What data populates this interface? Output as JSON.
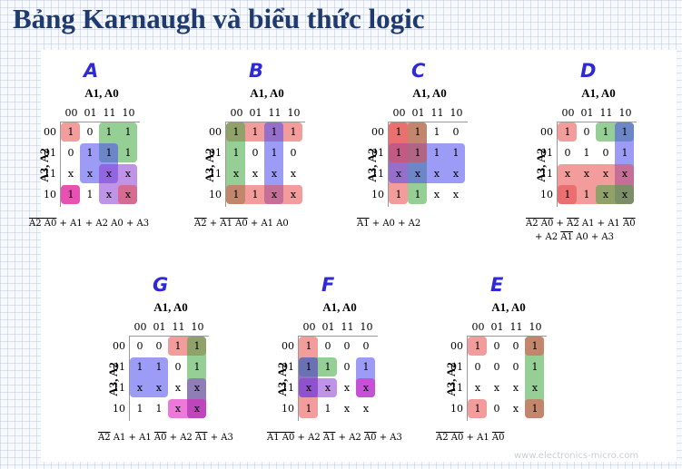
{
  "title": "Bảng Karnaugh và biểu thức logic",
  "col_var_label": "A1, A0",
  "row_var_label": "A3, A2",
  "gray_code": [
    "00",
    "01",
    "11",
    "10"
  ],
  "watermark": "www.electronics-micro.com",
  "colors": {
    "title": "#1f3a6e",
    "letter": "#2e2ad8",
    "red": "#e84a4a",
    "green": "#3fa83f",
    "blue": "#4a4af0",
    "purple": "#8a3bd0",
    "magenta": "#e020c0"
  },
  "maps": [
    {
      "letter": "A",
      "cells": [
        [
          "1",
          "0",
          "1",
          "1"
        ],
        [
          "0",
          "1",
          "1",
          "1"
        ],
        [
          "x",
          "x",
          "x",
          "x"
        ],
        [
          "1",
          "1",
          "x",
          "x"
        ]
      ],
      "expr": [
        [
          [
            "A2 A0",
            "ol"
          ],
          [
            " + A1 + A2 A0 + A3",
            ""
          ]
        ]
      ]
    },
    {
      "letter": "B",
      "cells": [
        [
          "1",
          "1",
          "1",
          "1"
        ],
        [
          "1",
          "0",
          "1",
          "0"
        ],
        [
          "x",
          "x",
          "x",
          "x"
        ],
        [
          "1",
          "1",
          "x",
          "x"
        ]
      ],
      "expr": [
        [
          [
            "A2",
            "ol"
          ],
          [
            " + ",
            ""
          ],
          [
            "A1 A0",
            "ol"
          ],
          [
            " + A1 A0",
            ""
          ]
        ]
      ]
    },
    {
      "letter": "C",
      "cells": [
        [
          "1",
          "1",
          "1",
          "0"
        ],
        [
          "1",
          "1",
          "1",
          "1"
        ],
        [
          "x",
          "x",
          "x",
          "x"
        ],
        [
          "1",
          "1",
          "x",
          "x"
        ]
      ],
      "expr": [
        [
          [
            "A1",
            "ol"
          ],
          [
            " + A0 + A2",
            ""
          ]
        ]
      ]
    },
    {
      "letter": "D",
      "cells": [
        [
          "1",
          "0",
          "1",
          "1"
        ],
        [
          "0",
          "1",
          "0",
          "1"
        ],
        [
          "x",
          "x",
          "x",
          "x"
        ],
        [
          "1",
          "1",
          "x",
          "x"
        ]
      ],
      "expr": [
        [
          [
            "A2 A0",
            "ol"
          ],
          [
            " + ",
            ""
          ],
          [
            "A2",
            "ol"
          ],
          [
            " A1 + A1 ",
            ""
          ],
          [
            "A0",
            "ol"
          ]
        ],
        [
          [
            "+ A2 ",
            ""
          ],
          [
            "A1",
            "ol"
          ],
          [
            " A0 + A3",
            ""
          ]
        ]
      ]
    },
    {
      "letter": "G",
      "cells": [
        [
          "0",
          "0",
          "1",
          "1"
        ],
        [
          "1",
          "1",
          "0",
          "1"
        ],
        [
          "x",
          "x",
          "x",
          "x"
        ],
        [
          "1",
          "1",
          "x",
          "x"
        ]
      ],
      "expr": [
        [
          [
            "A2",
            "ol"
          ],
          [
            " A1 + A1 ",
            ""
          ],
          [
            "A0",
            "ol"
          ],
          [
            " + A2 ",
            ""
          ],
          [
            "A1",
            "ol"
          ],
          [
            " + A3",
            ""
          ]
        ]
      ]
    },
    {
      "letter": "F",
      "cells": [
        [
          "1",
          "0",
          "0",
          "0"
        ],
        [
          "1",
          "1",
          "0",
          "1"
        ],
        [
          "x",
          "x",
          "x",
          "x"
        ],
        [
          "1",
          "1",
          "x",
          "x"
        ]
      ],
      "expr": [
        [
          [
            "A1 A0",
            "ol"
          ],
          [
            " + A2 ",
            ""
          ],
          [
            "A1",
            "ol"
          ],
          [
            " + A2 ",
            ""
          ],
          [
            "A0",
            "ol"
          ],
          [
            " + A3",
            ""
          ]
        ]
      ]
    },
    {
      "letter": "E",
      "cells": [
        [
          "1",
          "0",
          "0",
          "1"
        ],
        [
          "0",
          "0",
          "0",
          "1"
        ],
        [
          "x",
          "x",
          "x",
          "x"
        ],
        [
          "1",
          "0",
          "x",
          "1"
        ]
      ],
      "expr": [
        [
          [
            "A2 A0",
            "ol"
          ],
          [
            " + A1 ",
            ""
          ],
          [
            "A0",
            "ol"
          ]
        ]
      ]
    }
  ],
  "groups": [
    [
      {
        "c": "red",
        "r": [
          0,
          0
        ],
        "k": [
          0,
          0
        ]
      },
      {
        "c": "red",
        "r": [
          3,
          3
        ],
        "k": [
          0,
          0
        ]
      },
      {
        "c": "green",
        "r": [
          0,
          1
        ],
        "k": [
          2,
          3
        ]
      },
      {
        "c": "blue",
        "r": [
          1,
          2
        ],
        "k": [
          1,
          2
        ]
      },
      {
        "c": "purple",
        "r": [
          2,
          3
        ],
        "k": [
          2,
          3
        ]
      },
      {
        "c": "magenta",
        "r": [
          3,
          3
        ],
        "k": [
          0,
          0
        ]
      },
      {
        "c": "red",
        "r": [
          3,
          3
        ],
        "k": [
          3,
          3
        ]
      }
    ],
    [
      {
        "c": "red",
        "r": [
          0,
          0
        ],
        "k": [
          0,
          3
        ]
      },
      {
        "c": "green",
        "r": [
          0,
          3
        ],
        "k": [
          0,
          0
        ]
      },
      {
        "c": "blue",
        "r": [
          0,
          3
        ],
        "k": [
          2,
          2
        ]
      },
      {
        "c": "red",
        "r": [
          3,
          3
        ],
        "k": [
          0,
          3
        ]
      }
    ],
    [
      {
        "c": "red",
        "r": [
          0,
          3
        ],
        "k": [
          0,
          0
        ]
      },
      {
        "c": "green",
        "r": [
          0,
          3
        ],
        "k": [
          1,
          1
        ]
      },
      {
        "c": "blue",
        "r": [
          1,
          2
        ],
        "k": [
          0,
          3
        ]
      },
      {
        "c": "red",
        "r": [
          0,
          1
        ],
        "k": [
          0,
          1
        ]
      }
    ],
    [
      {
        "c": "red",
        "r": [
          0,
          0
        ],
        "k": [
          0,
          0
        ]
      },
      {
        "c": "red",
        "r": [
          3,
          3
        ],
        "k": [
          0,
          0
        ]
      },
      {
        "c": "green",
        "r": [
          0,
          0
        ],
        "k": [
          2,
          3
        ]
      },
      {
        "c": "blue",
        "r": [
          0,
          3
        ],
        "k": [
          3,
          3
        ]
      },
      {
        "c": "red",
        "r": [
          2,
          3
        ],
        "k": [
          0,
          3
        ]
      },
      {
        "c": "green",
        "r": [
          3,
          3
        ],
        "k": [
          2,
          3
        ]
      }
    ],
    [
      {
        "c": "red",
        "r": [
          0,
          0
        ],
        "k": [
          2,
          3
        ]
      },
      {
        "c": "green",
        "r": [
          0,
          3
        ],
        "k": [
          3,
          3
        ]
      },
      {
        "c": "blue",
        "r": [
          1,
          2
        ],
        "k": [
          0,
          1
        ]
      },
      {
        "c": "purple",
        "r": [
          2,
          3
        ],
        "k": [
          3,
          3
        ]
      },
      {
        "c": "magenta",
        "r": [
          3,
          3
        ],
        "k": [
          2,
          3
        ]
      }
    ],
    [
      {
        "c": "red",
        "r": [
          0,
          3
        ],
        "k": [
          0,
          0
        ]
      },
      {
        "c": "green",
        "r": [
          1,
          1
        ],
        "k": [
          0,
          1
        ]
      },
      {
        "c": "blue",
        "r": [
          1,
          2
        ],
        "k": [
          0,
          0
        ]
      },
      {
        "c": "blue",
        "r": [
          1,
          2
        ],
        "k": [
          3,
          3
        ]
      },
      {
        "c": "purple",
        "r": [
          2,
          2
        ],
        "k": [
          0,
          1
        ]
      },
      {
        "c": "magenta",
        "r": [
          2,
          2
        ],
        "k": [
          3,
          3
        ]
      }
    ],
    [
      {
        "c": "red",
        "r": [
          0,
          0
        ],
        "k": [
          0,
          0
        ]
      },
      {
        "c": "red",
        "r": [
          3,
          3
        ],
        "k": [
          0,
          0
        ]
      },
      {
        "c": "green",
        "r": [
          0,
          3
        ],
        "k": [
          3,
          3
        ]
      },
      {
        "c": "red",
        "r": [
          0,
          0
        ],
        "k": [
          3,
          3
        ]
      },
      {
        "c": "red",
        "r": [
          3,
          3
        ],
        "k": [
          3,
          3
        ]
      }
    ]
  ]
}
